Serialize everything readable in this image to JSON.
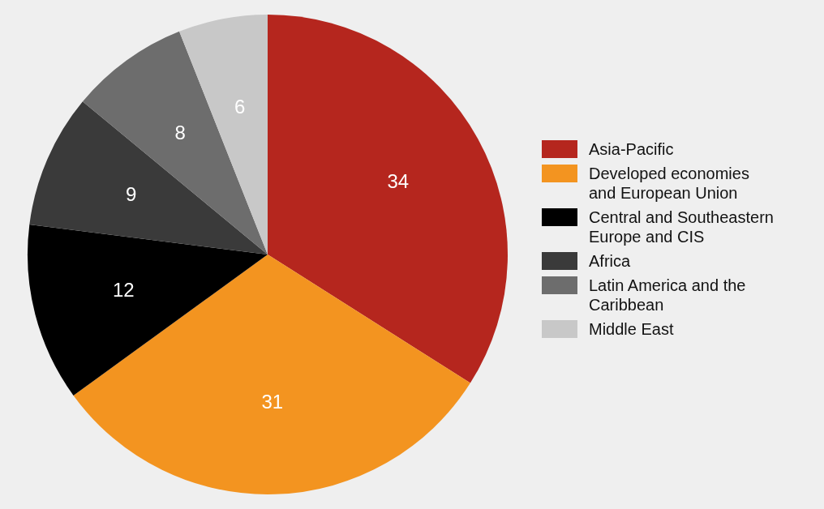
{
  "chart_data": {
    "type": "pie",
    "categories": [
      "Asia-Pacific",
      "Developed economies and European Union",
      "Central and Southeastern Europe and CIS",
      "Africa",
      "Latin America and the Caribbean",
      "Middle East"
    ],
    "values": [
      34,
      31,
      12,
      9,
      8,
      6
    ],
    "colors": [
      "#b5261e",
      "#f39420",
      "#000000",
      "#3a3a3a",
      "#6d6d6d",
      "#c8c8c8"
    ],
    "data_labels": true,
    "legend": "right"
  }
}
